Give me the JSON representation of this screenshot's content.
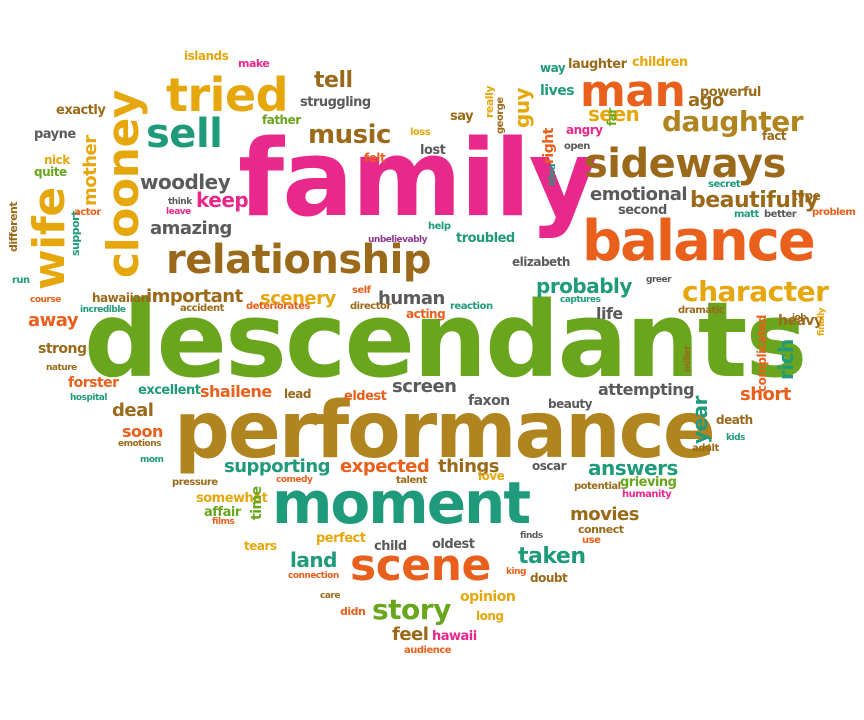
{
  "palette": {
    "pink": "#e8288a",
    "green": "#6aa51e",
    "teal": "#1f9a7a",
    "orange": "#e8601c",
    "gold": "#e6a70d",
    "brown": "#9a6a1a",
    "gray": "#5a5a5a",
    "purple": "#8a3a8e"
  },
  "words": [
    {
      "text": "family",
      "color": "#e8288a"
    },
    {
      "text": "descendants",
      "color": "#6aa51e"
    },
    {
      "text": "performance",
      "color": "#b0841e"
    },
    {
      "text": "moment",
      "color": "#1f9a7a"
    },
    {
      "text": "balance",
      "color": "#e8601c"
    },
    {
      "text": "relationship",
      "color": "#9a6a1a"
    },
    {
      "text": "sideways",
      "color": "#9a6a1a"
    },
    {
      "text": "tried",
      "color": "#e6a70d"
    },
    {
      "text": "man",
      "color": "#e8601c"
    },
    {
      "text": "clooney",
      "color": "#e6a70d"
    },
    {
      "text": "wife",
      "color": "#e6a70d"
    },
    {
      "text": "sell",
      "color": "#1f9a7a"
    },
    {
      "text": "scene",
      "color": "#e8601c"
    },
    {
      "text": "character",
      "color": "#e6a70d"
    },
    {
      "text": "daughter",
      "color": "#b0841e"
    },
    {
      "text": "beautifully",
      "color": "#9a6a1a"
    },
    {
      "text": "music",
      "color": "#9a6a1a"
    },
    {
      "text": "story",
      "color": "#6aa51e"
    },
    {
      "text": "probably",
      "color": "#1f9a7a"
    },
    {
      "text": "tell",
      "color": "#9a6a1a"
    },
    {
      "text": "keeps",
      "color": "#e8288a"
    },
    {
      "text": "woodley",
      "color": "#5a5a5a"
    },
    {
      "text": "amazing",
      "color": "#5a5a5a"
    },
    {
      "text": "scenery",
      "color": "#e6a70d"
    },
    {
      "text": "important",
      "color": "#9a6a1a"
    },
    {
      "text": "human",
      "color": "#5a5a5a"
    },
    {
      "text": "emotional",
      "color": "#5a5a5a"
    },
    {
      "text": "seen",
      "color": "#e6a70d"
    },
    {
      "text": "ago",
      "color": "#9a6a1a"
    },
    {
      "text": "guy",
      "color": "#e6a70d"
    },
    {
      "text": "mother",
      "color": "#e6a70d"
    },
    {
      "text": "away",
      "color": "#e8601c"
    },
    {
      "text": "supporting",
      "color": "#1f9a7a"
    },
    {
      "text": "expected",
      "color": "#e8601c"
    },
    {
      "text": "things",
      "color": "#9a6a1a"
    },
    {
      "text": "answers",
      "color": "#1f9a7a"
    },
    {
      "text": "rich",
      "color": "#1f9a7a"
    },
    {
      "text": "year",
      "color": "#1f9a7a"
    },
    {
      "text": "short",
      "color": "#e8601c"
    },
    {
      "text": "shailene",
      "color": "#e8601c"
    },
    {
      "text": "screen",
      "color": "#5a5a5a"
    },
    {
      "text": "deal",
      "color": "#9a6a1a"
    },
    {
      "text": "soon",
      "color": "#e8601c"
    },
    {
      "text": "movies",
      "color": "#9a6a1a"
    },
    {
      "text": "taken",
      "color": "#1f9a7a"
    },
    {
      "text": "land",
      "color": "#1f9a7a"
    },
    {
      "text": "feel",
      "color": "#9a6a1a"
    },
    {
      "text": "attempting",
      "color": "#5a5a5a"
    },
    {
      "text": "faxon",
      "color": "#5a5a5a"
    },
    {
      "text": "life",
      "color": "#5a5a5a"
    },
    {
      "text": "heavy",
      "color": "#9a6a1a"
    },
    {
      "text": "complicated",
      "color": "#e8601c"
    },
    {
      "text": "forster",
      "color": "#e8601c"
    },
    {
      "text": "excellent",
      "color": "#1f9a7a"
    },
    {
      "text": "strong",
      "color": "#9a6a1a"
    },
    {
      "text": "hawaiian",
      "color": "#9a6a1a"
    },
    {
      "text": "lives",
      "color": "#1f9a7a"
    },
    {
      "text": "laughter",
      "color": "#9a6a1a"
    },
    {
      "text": "children",
      "color": "#e6a70d"
    },
    {
      "text": "way",
      "color": "#1f9a7a"
    },
    {
      "text": "powerful",
      "color": "#9a6a1a"
    },
    {
      "text": "struggling",
      "color": "#5a5a5a"
    },
    {
      "text": "father",
      "color": "#6aa51e"
    },
    {
      "text": "islands",
      "color": "#e6a70d"
    },
    {
      "text": "make",
      "color": "#e8288a"
    },
    {
      "text": "exactly",
      "color": "#9a6a1a"
    },
    {
      "text": "payne",
      "color": "#5a5a5a"
    },
    {
      "text": "nick",
      "color": "#e6a70d"
    },
    {
      "text": "quite",
      "color": "#6aa51e"
    },
    {
      "text": "different",
      "color": "#9a6a1a"
    },
    {
      "text": "support",
      "color": "#1f9a7a"
    },
    {
      "text": "run",
      "color": "#1f9a7a"
    },
    {
      "text": "felt",
      "color": "#e8601c"
    },
    {
      "text": "lost",
      "color": "#5a5a5a"
    },
    {
      "text": "loss",
      "color": "#e6a70d"
    },
    {
      "text": "say",
      "color": "#9a6a1a"
    },
    {
      "text": "really",
      "color": "#e6a70d"
    },
    {
      "text": "george",
      "color": "#9a6a1a"
    },
    {
      "text": "right",
      "color": "#e8601c"
    },
    {
      "text": "angry",
      "color": "#e8288a"
    },
    {
      "text": "open",
      "color": "#5a5a5a"
    },
    {
      "text": "idea",
      "color": "#1f9a7a"
    },
    {
      "text": "far",
      "color": "#6aa51e"
    },
    {
      "text": "fact",
      "color": "#9a6a1a"
    },
    {
      "text": "secret",
      "color": "#1f9a7a"
    },
    {
      "text": "type",
      "color": "#9a6a1a"
    },
    {
      "text": "matt",
      "color": "#1f9a7a"
    },
    {
      "text": "better",
      "color": "#5a5a5a"
    },
    {
      "text": "problem",
      "color": "#e8601c"
    },
    {
      "text": "second",
      "color": "#5a5a5a"
    },
    {
      "text": "think",
      "color": "#5a5a5a"
    },
    {
      "text": "actor",
      "color": "#e8601c"
    },
    {
      "text": "leave",
      "color": "#e8288a"
    },
    {
      "text": "unbelievably",
      "color": "#8a3a8e"
    },
    {
      "text": "help",
      "color": "#1f9a7a"
    },
    {
      "text": "troubled",
      "color": "#1f9a7a"
    },
    {
      "text": "elizabeth",
      "color": "#5a5a5a"
    },
    {
      "text": "greer",
      "color": "#5a5a5a"
    },
    {
      "text": "captures",
      "color": "#1f9a7a"
    },
    {
      "text": "dramatic",
      "color": "#9a6a1a"
    },
    {
      "text": "finally",
      "color": "#e6a70d"
    },
    {
      "text": "course",
      "color": "#e8601c"
    },
    {
      "text": "incredible",
      "color": "#1f9a7a"
    },
    {
      "text": "accident",
      "color": "#9a6a1a"
    },
    {
      "text": "deteriorates",
      "color": "#e8601c"
    },
    {
      "text": "self",
      "color": "#e8601c"
    },
    {
      "text": "director",
      "color": "#9a6a1a"
    },
    {
      "text": "acting",
      "color": "#e8601c"
    },
    {
      "text": "reaction",
      "color": "#1f9a7a"
    },
    {
      "text": "nature",
      "color": "#9a6a1a"
    },
    {
      "text": "hospital",
      "color": "#1f9a7a"
    },
    {
      "text": "lead",
      "color": "#9a6a1a"
    },
    {
      "text": "eldest",
      "color": "#e8601c"
    },
    {
      "text": "beauty",
      "color": "#5a5a5a"
    },
    {
      "text": "death",
      "color": "#9a6a1a"
    },
    {
      "text": "miller",
      "color": "#9a6a1a"
    },
    {
      "text": "emotions",
      "color": "#9a6a1a"
    },
    {
      "text": "mom",
      "color": "#1f9a7a"
    },
    {
      "text": "kids",
      "color": "#1f9a7a"
    },
    {
      "text": "adult",
      "color": "#9a6a1a"
    },
    {
      "text": "job",
      "color": "#9a6a1a"
    },
    {
      "text": "pressure",
      "color": "#9a6a1a"
    },
    {
      "text": "comedy",
      "color": "#e8601c"
    },
    {
      "text": "talent",
      "color": "#9a6a1a"
    },
    {
      "text": "love",
      "color": "#e6a70d"
    },
    {
      "text": "oscar",
      "color": "#5a5a5a"
    },
    {
      "text": "potential",
      "color": "#9a6a1a"
    },
    {
      "text": "grieving",
      "color": "#6aa51e"
    },
    {
      "text": "humanity",
      "color": "#e8288a"
    },
    {
      "text": "somewhat",
      "color": "#e6a70d"
    },
    {
      "text": "affair",
      "color": "#6aa51e"
    },
    {
      "text": "films",
      "color": "#e8601c"
    },
    {
      "text": "time",
      "color": "#6aa51e"
    },
    {
      "text": "perfect",
      "color": "#e6a70d"
    },
    {
      "text": "tears",
      "color": "#e6a70d"
    },
    {
      "text": "child",
      "color": "#5a5a5a"
    },
    {
      "text": "oldest",
      "color": "#5a5a5a"
    },
    {
      "text": "connect",
      "color": "#9a6a1a"
    },
    {
      "text": "use",
      "color": "#e8601c"
    },
    {
      "text": "finds",
      "color": "#5a5a5a"
    },
    {
      "text": "connection",
      "color": "#e8601c"
    },
    {
      "text": "king",
      "color": "#e8601c"
    },
    {
      "text": "doubt",
      "color": "#9a6a1a"
    },
    {
      "text": "care",
      "color": "#9a6a1a"
    },
    {
      "text": "didn",
      "color": "#e8601c"
    },
    {
      "text": "opinion",
      "color": "#e6a70d"
    },
    {
      "text": "long",
      "color": "#e6a70d"
    },
    {
      "text": "hawaii",
      "color": "#e8288a"
    },
    {
      "text": "audience",
      "color": "#e8601c"
    }
  ]
}
